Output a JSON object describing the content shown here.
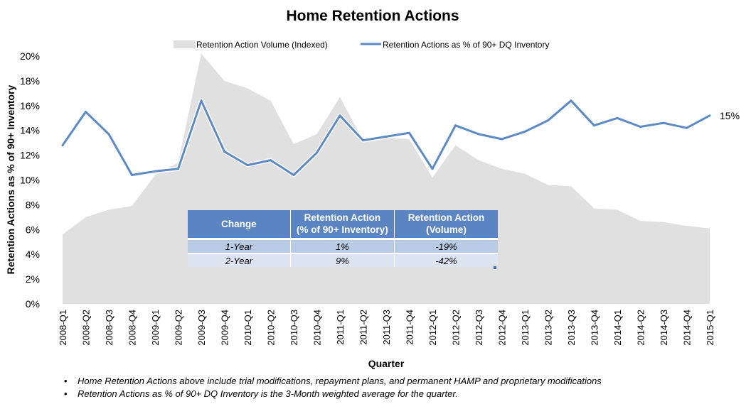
{
  "chart_data": {
    "type": "line",
    "title": "Home Retention Actions",
    "xlabel": "Quarter",
    "ylabel": "Retention Actions as % of 90+ Inventory",
    "ylim": [
      0,
      20
    ],
    "yticks": [
      "0%",
      "2%",
      "4%",
      "6%",
      "8%",
      "10%",
      "12%",
      "14%",
      "16%",
      "18%",
      "20%"
    ],
    "ytick_values": [
      0,
      2,
      4,
      6,
      8,
      10,
      12,
      14,
      16,
      18,
      20
    ],
    "grid": false,
    "legend_position": "top-center",
    "categories": [
      "2008-Q1",
      "2008-Q2",
      "2008-Q3",
      "2008-Q4",
      "2009-Q1",
      "2009-Q2",
      "2009-Q3",
      "2009-Q4",
      "2010-Q1",
      "2010-Q2",
      "2010-Q3",
      "2010-Q4",
      "2011-Q1",
      "2011-Q2",
      "2011-Q3",
      "2011-Q4",
      "2012-Q1",
      "2012-Q2",
      "2012-Q3",
      "2012-Q4",
      "2013-Q1",
      "2013-Q2",
      "2013-Q3",
      "2013-Q4",
      "2014-Q1",
      "2014-Q2",
      "2014-Q3",
      "2014-Q4",
      "2015-Q1"
    ],
    "series": [
      {
        "name": "Retention Action Volume (Indexed)",
        "type": "area",
        "color": "#e0e0e0",
        "values": [
          5.6,
          7.0,
          7.6,
          7.9,
          10.4,
          11.4,
          20.2,
          18.0,
          17.4,
          16.4,
          12.9,
          13.7,
          16.7,
          13.2,
          13.4,
          13.3,
          10.2,
          12.8,
          11.6,
          10.9,
          10.5,
          9.6,
          9.5,
          7.7,
          7.6,
          6.7,
          6.6,
          6.3,
          6.1
        ]
      },
      {
        "name": "Retention Actions as % of 90+ DQ Inventory",
        "type": "line",
        "color": "#5b8ac5",
        "values": [
          12.8,
          15.5,
          13.7,
          10.4,
          10.7,
          10.9,
          16.4,
          12.3,
          11.2,
          11.6,
          10.4,
          12.2,
          15.2,
          13.2,
          13.5,
          13.8,
          10.9,
          14.4,
          13.7,
          13.3,
          13.9,
          14.8,
          16.4,
          14.4,
          15.0,
          14.3,
          14.6,
          14.2,
          15.2
        ]
      }
    ],
    "end_label": "15%"
  },
  "table": {
    "headers": [
      "Change",
      "Retention Action (% of 90+ Inventory)",
      "Retention Action (Volume)"
    ],
    "header_lines": [
      [
        "Change"
      ],
      [
        "Retention Action",
        "(% of 90+ Inventory)"
      ],
      [
        "Retention Action",
        "(Volume)"
      ]
    ],
    "rows": [
      [
        "1-Year",
        "1%",
        "-19%"
      ],
      [
        "2-Year",
        "9%",
        "-42%"
      ]
    ]
  },
  "notes": [
    "Home Retention Actions above include trial modifications, repayment plans, and permanent HAMP and proprietary modifications",
    "Retention Actions as % of 90+ DQ Inventory is the 3-Month weighted average for the quarter."
  ],
  "bullet_glyph": "•"
}
